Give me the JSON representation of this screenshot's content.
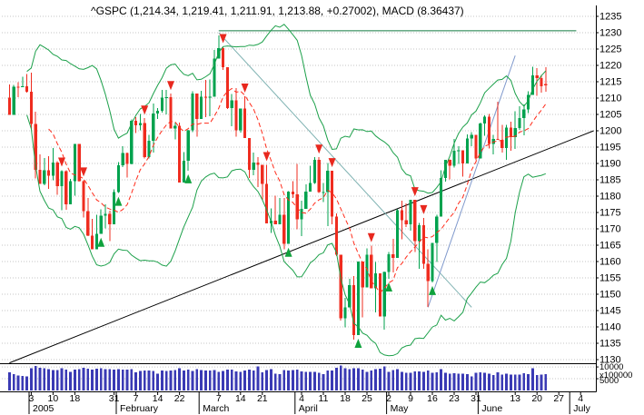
{
  "title": "^GSPC (1,214.34, 1,219.41, 1,211.91, 1,213.88, +0.27002), MACD (8.36437)",
  "colors": {
    "up": "#00a24e",
    "down": "#ef2c1f",
    "volume": "#3a3ab4",
    "grid": "#c4c4c4",
    "band": "#1ca04a",
    "sma": "#ff2b1a",
    "sell_arrow": "#e8281e",
    "buy_arrow": "#0fa23c",
    "axis": "#000000"
  },
  "price_axis": {
    "min": 1130,
    "max": 1235,
    "step": 5
  },
  "volume_axis": {
    "gridlines": [
      10000,
      5000
    ],
    "labels": [
      "10000",
      "5000"
    ],
    "multiplier_label": "x100000",
    "max": 10800
  },
  "x_axis": {
    "ticks": [
      {
        "label": "3",
        "index": 5
      },
      {
        "label": "10",
        "index": 10
      },
      {
        "label": "18",
        "index": 15
      },
      {
        "label": "31",
        "index": 24
      },
      {
        "label": "7",
        "index": 29
      },
      {
        "label": "14",
        "index": 34
      },
      {
        "label": "22",
        "index": 39
      },
      {
        "label": "7",
        "index": 48
      },
      {
        "label": "14",
        "index": 53
      },
      {
        "label": "21",
        "index": 58
      },
      {
        "label": "4",
        "index": 67
      },
      {
        "label": "11",
        "index": 72
      },
      {
        "label": "18",
        "index": 77
      },
      {
        "label": "25",
        "index": 82
      },
      {
        "label": "2",
        "index": 87
      },
      {
        "label": "9",
        "index": 92
      },
      {
        "label": "16",
        "index": 97
      },
      {
        "label": "23",
        "index": 102
      },
      {
        "label": "31",
        "index": 107
      },
      {
        "label": "13",
        "index": 116
      },
      {
        "label": "20",
        "index": 121
      },
      {
        "label": "27",
        "index": 126
      },
      {
        "label": "4",
        "index": 131
      }
    ],
    "months": [
      {
        "label": "2005",
        "index": 5
      },
      {
        "label": "February",
        "index": 25
      },
      {
        "label": "March",
        "index": 44
      },
      {
        "label": "April",
        "index": 66
      },
      {
        "label": "May",
        "index": 87
      },
      {
        "label": "June",
        "index": 108
      },
      {
        "label": "July",
        "index": 129
      }
    ]
  },
  "chart_data": {
    "type": "candlestick",
    "symbol": "^GSPC",
    "title": "^GSPC (1,214.34, 1,219.41, 1,211.91, 1,213.88, +0.27002), MACD (8.36437)",
    "ylim": [
      1130,
      1235
    ],
    "volume_ylim": [
      0,
      10800
    ],
    "grid": true,
    "dates": [
      "2004-12-27",
      "2004-12-28",
      "2004-12-29",
      "2004-12-30",
      "2004-12-31",
      "2005-01-03",
      "2005-01-04",
      "2005-01-05",
      "2005-01-06",
      "2005-01-07",
      "2005-01-10",
      "2005-01-11",
      "2005-01-12",
      "2005-01-13",
      "2005-01-14",
      "2005-01-18",
      "2005-01-19",
      "2005-01-20",
      "2005-01-21",
      "2005-01-24",
      "2005-01-25",
      "2005-01-26",
      "2005-01-27",
      "2005-01-28",
      "2005-01-31",
      "2005-02-01",
      "2005-02-02",
      "2005-02-03",
      "2005-02-04",
      "2005-02-07",
      "2005-02-08",
      "2005-02-09",
      "2005-02-10",
      "2005-02-11",
      "2005-02-14",
      "2005-02-15",
      "2005-02-16",
      "2005-02-17",
      "2005-02-18",
      "2005-02-22",
      "2005-02-23",
      "2005-02-24",
      "2005-02-25",
      "2005-02-28",
      "2005-03-01",
      "2005-03-02",
      "2005-03-03",
      "2005-03-04",
      "2005-03-07",
      "2005-03-08",
      "2005-03-09",
      "2005-03-10",
      "2005-03-11",
      "2005-03-14",
      "2005-03-15",
      "2005-03-16",
      "2005-03-17",
      "2005-03-18",
      "2005-03-21",
      "2005-03-22",
      "2005-03-23",
      "2005-03-24",
      "2005-03-28",
      "2005-03-29",
      "2005-03-30",
      "2005-03-31",
      "2005-04-01",
      "2005-04-04",
      "2005-04-05",
      "2005-04-06",
      "2005-04-07",
      "2005-04-08",
      "2005-04-11",
      "2005-04-12",
      "2005-04-13",
      "2005-04-14",
      "2005-04-15",
      "2005-04-18",
      "2005-04-19",
      "2005-04-20",
      "2005-04-21",
      "2005-04-22",
      "2005-04-25",
      "2005-04-26",
      "2005-04-27",
      "2005-04-28",
      "2005-04-29",
      "2005-05-02",
      "2005-05-03",
      "2005-05-04",
      "2005-05-05",
      "2005-05-06",
      "2005-05-09",
      "2005-05-10",
      "2005-05-11",
      "2005-05-12",
      "2005-05-13",
      "2005-05-16",
      "2005-05-17",
      "2005-05-18",
      "2005-05-19",
      "2005-05-20",
      "2005-05-23",
      "2005-05-24",
      "2005-05-25",
      "2005-05-26",
      "2005-05-27",
      "2005-05-31",
      "2005-06-01",
      "2005-06-02",
      "2005-06-03",
      "2005-06-06",
      "2005-06-07",
      "2005-06-08",
      "2005-06-09",
      "2005-06-10",
      "2005-06-13",
      "2005-06-14",
      "2005-06-15",
      "2005-06-16",
      "2005-06-17",
      "2005-06-20",
      "2005-06-21",
      "2005-06-22"
    ],
    "open": [
      1210.13,
      1204.92,
      1213.54,
      1213.45,
      1213.55,
      1211.92,
      1202.08,
      1188.05,
      1183.74,
      1187.89,
      1186.19,
      1190.25,
      1182.99,
      1187.7,
      1177.45,
      1184.52,
      1195.98,
      1184.63,
      1175.41,
      1167.87,
      1163.75,
      1168.41,
      1174.07,
      1174.55,
      1171.36,
      1181.27,
      1189.41,
      1193.19,
      1189.89,
      1203.03,
      1201.72,
      1202.3,
      1191.99,
      1197.01,
      1205.3,
      1206.14,
      1210.12,
      1210.34,
      1200.75,
      1201.59,
      1184.16,
      1190.8,
      1200.2,
      1211.37,
      1203.6,
      1210.41,
      1210.08,
      1210.47,
      1222.12,
      1225.31,
      1219.43,
      1207.01,
      1209.25,
      1200.08,
      1206.83,
      1197.75,
      1188.07,
      1190.21,
      1189.65,
      1183.78,
      1171.71,
      1172.53,
      1171.42,
      1174.28,
      1165.36,
      1181.41,
      1180.59,
      1172.92,
      1176.12,
      1181.39,
      1184.07,
      1191.14,
      1181.2,
      1181.21,
      1187.76,
      1173.79,
      1162.05,
      1142.62,
      1145.98,
      1152.78,
      1137.5,
      1159.95,
      1152.12,
      1162.1,
      1151.74,
      1156.38,
      1143.22,
      1156.85,
      1162.16,
      1161.17,
      1175.65,
      1172.63,
      1171.35,
      1178.84,
      1166.22,
      1171.11,
      1159.36,
      1154.05,
      1165.69,
      1173.8,
      1185.56,
      1191.08,
      1189.28,
      1193.86,
      1194.07,
      1190.01,
      1197.62,
      1198.78,
      1191.5,
      1202.22,
      1204.29,
      1196.02,
      1197.51,
      1197.26,
      1194.67,
      1200.93,
      1198.11,
      1200.82,
      1203.91,
      1206.58,
      1210.96,
      1216.96,
      1216.1,
      1214.34
    ],
    "high": [
      1214.13,
      1213.97,
      1214.86,
      1216.47,
      1217.33,
      1217.8,
      1205.84,
      1192.73,
      1191.63,
      1192.2,
      1194.78,
      1190.67,
      1187.92,
      1187.92,
      1185.21,
      1195.98,
      1195.98,
      1184.88,
      1179.45,
      1173.03,
      1174.3,
      1175.96,
      1177.5,
      1175.61,
      1182.07,
      1190.39,
      1195.25,
      1193.34,
      1203.47,
      1204.15,
      1205.11,
      1203.83,
      1198.75,
      1208.38,
      1206.88,
      1212.44,
      1212.44,
      1211.33,
      1202.48,
      1202.48,
      1193.54,
      1200.26,
      1212.15,
      1211.37,
      1212.25,
      1215.61,
      1215.72,
      1224.76,
      1229.11,
      1225.69,
      1219.43,
      1211.23,
      1213.04,
      1206.83,
      1210.54,
      1197.75,
      1193.28,
      1191.98,
      1189.65,
      1189.59,
      1176.26,
      1180.11,
      1179.39,
      1179.39,
      1181.55,
      1184.53,
      1189.8,
      1178.61,
      1183.56,
      1189.35,
      1191.88,
      1191.88,
      1184.07,
      1190.17,
      1187.76,
      1174.67,
      1162.05,
      1148.92,
      1154.67,
      1155.5,
      1159.95,
      1159.95,
      1164.05,
      1164.8,
      1159.87,
      1156.38,
      1156.97,
      1162.87,
      1166.89,
      1176.01,
      1178.62,
      1177.75,
      1178.87,
      1178.84,
      1171.77,
      1173.37,
      1163.75,
      1165.75,
      1174.35,
      1187.9,
      1191.12,
      1191.22,
      1197.44,
      1195.29,
      1194.07,
      1198.95,
      1199.56,
      1198.78,
      1202.56,
      1204.68,
      1205.09,
      1198.78,
      1208.85,
      1201.86,
      1201.86,
      1202.79,
      1206.03,
      1207.53,
      1208.08,
      1212.1,
      1219.55,
      1219.1,
      1217.13,
      1219.41
    ],
    "low": [
      1204.92,
      1204.92,
      1210.3,
      1213.41,
      1211.65,
      1200.32,
      1185.39,
      1183.72,
      1183.27,
      1182.16,
      1184.8,
      1180.43,
      1175.64,
      1175.81,
      1177.45,
      1180.12,
      1184.41,
      1173.43,
      1167.82,
      1163.75,
      1163.75,
      1168.41,
      1170.15,
      1166.25,
      1171.36,
      1180.95,
      1188.92,
      1185.64,
      1189.67,
      1199.27,
      1200.16,
      1191.54,
      1191.54,
      1193.28,
      1203.59,
      1205.52,
      1205.06,
      1200.74,
      1197.35,
      1184.16,
      1184.16,
      1187.8,
      1199.6,
      1198.13,
      1203.6,
      1204.22,
      1204.44,
      1210.47,
      1222.12,
      1218.57,
      1206.66,
      1201.41,
      1198.15,
      1199.51,
      1197.75,
      1185.61,
      1186.34,
      1182.78,
      1178.82,
      1171.63,
      1168.7,
      1171.42,
      1171.42,
      1163.69,
      1165.36,
      1179.49,
      1169.91,
      1167.72,
      1176.12,
      1181.39,
      1183.81,
      1181.03,
      1178.22,
      1170.85,
      1171.4,
      1161.7,
      1141.92,
      1139.8,
      1145.98,
      1136.15,
      1137.5,
      1142.95,
      1152.12,
      1151.74,
      1144.42,
      1143.22,
      1139.19,
      1154.71,
      1156.71,
      1161.17,
      1166.77,
      1170.5,
      1169.38,
      1162.98,
      1157.71,
      1157.76,
      1146.18,
      1153.64,
      1159.82,
      1173.8,
      1184.49,
      1185.19,
      1188.76,
      1189.87,
      1185.96,
      1190.01,
      1195.28,
      1191.03,
      1191.5,
      1198.42,
      1194.55,
      1192.75,
      1197.26,
      1193.33,
      1191.08,
      1193.88,
      1194.51,
      1200.23,
      1198.66,
      1205.47,
      1210.96,
      1210.65,
      1211.69,
      1211.91
    ],
    "close": [
      1204.92,
      1213.54,
      1213.45,
      1213.55,
      1211.92,
      1202.08,
      1188.05,
      1183.74,
      1187.89,
      1186.19,
      1190.25,
      1182.99,
      1187.7,
      1177.45,
      1184.52,
      1195.98,
      1184.63,
      1175.41,
      1167.87,
      1163.75,
      1168.41,
      1174.07,
      1174.55,
      1171.36,
      1181.27,
      1189.41,
      1193.19,
      1189.89,
      1203.03,
      1201.72,
      1202.3,
      1191.99,
      1197.01,
      1205.3,
      1206.14,
      1210.12,
      1210.34,
      1200.75,
      1201.59,
      1184.16,
      1190.8,
      1200.2,
      1211.37,
      1203.6,
      1210.41,
      1210.08,
      1210.47,
      1222.12,
      1225.31,
      1219.43,
      1207.01,
      1209.25,
      1200.08,
      1206.83,
      1197.75,
      1188.07,
      1190.21,
      1189.65,
      1183.78,
      1171.71,
      1172.53,
      1171.42,
      1174.28,
      1165.36,
      1181.41,
      1180.59,
      1172.92,
      1176.12,
      1181.39,
      1184.07,
      1191.14,
      1181.2,
      1181.21,
      1187.76,
      1173.79,
      1162.05,
      1142.62,
      1145.98,
      1152.78,
      1137.5,
      1159.95,
      1152.12,
      1162.1,
      1151.74,
      1156.38,
      1143.22,
      1156.85,
      1162.16,
      1161.17,
      1175.65,
      1172.63,
      1171.35,
      1178.84,
      1166.22,
      1171.11,
      1159.36,
      1154.05,
      1165.69,
      1173.8,
      1185.56,
      1191.08,
      1189.28,
      1193.86,
      1194.07,
      1190.01,
      1197.62,
      1198.78,
      1191.5,
      1202.22,
      1204.29,
      1196.02,
      1197.51,
      1197.26,
      1194.67,
      1200.93,
      1198.11,
      1200.82,
      1203.91,
      1206.58,
      1210.96,
      1216.96,
      1216.1,
      1213.61,
      1213.88
    ],
    "volume_x100000": [
      7800,
      7000,
      6400,
      6200,
      6000,
      9500,
      10400,
      9700,
      9500,
      9000,
      8600,
      8700,
      9400,
      8800,
      8000,
      8900,
      9000,
      9600,
      9300,
      8900,
      9200,
      9400,
      9000,
      9100,
      8800,
      9100,
      8900,
      8900,
      9000,
      7700,
      8300,
      8500,
      8400,
      8300,
      7200,
      8500,
      8300,
      8500,
      8600,
      9400,
      8500,
      8800,
      8300,
      9100,
      8600,
      8400,
      8500,
      8600,
      8000,
      8300,
      8800,
      8800,
      8100,
      7900,
      8400,
      8800,
      8500,
      10200,
      7800,
      8600,
      9000,
      7200,
      7000,
      8600,
      8400,
      8700,
      8800,
      8100,
      7900,
      7900,
      8000,
      7500,
      7000,
      8400,
      8500,
      9700,
      10600,
      9500,
      9000,
      9500,
      9500,
      8900,
      8000,
      8500,
      9000,
      9300,
      10200,
      8000,
      8600,
      9000,
      8000,
      7600,
      7500,
      8100,
      8100,
      8000,
      8500,
      7500,
      7700,
      9000,
      7500,
      7200,
      7300,
      7100,
      7200,
      7000,
      6000,
      7600,
      7800,
      7600,
      7200,
      6600,
      7800,
      6800,
      7200,
      6800,
      6700,
      6800,
      7300,
      7000,
      9500,
      6600,
      6800,
      6900
    ],
    "indicators": {
      "sma_dashed_red_period": 10,
      "bollinger_green_period": 20,
      "bollinger_green_k": 2
    },
    "trendlines": [
      {
        "name": "long-uptrend",
        "color": "#000000",
        "from_index": 0,
        "from_price": 1129,
        "to_index": 134,
        "to_price": 1200
      },
      {
        "name": "march-downtrend",
        "color": "#7fb2b2",
        "from_index": 48,
        "from_price": 1230,
        "to_index": 106,
        "to_price": 1146
      },
      {
        "name": "may-uptrend",
        "color": "#8099cc",
        "from_index": 96,
        "from_price": 1146,
        "to_index": 116,
        "to_price": 1223
      },
      {
        "name": "resistance-1230",
        "color": "#107a40",
        "from_index": 48,
        "from_price": 1230.6,
        "to_index": 130,
        "to_price": 1230.6
      }
    ],
    "signals": {
      "sell_indices": [
        12,
        17,
        31,
        37,
        49,
        54,
        59,
        71,
        74,
        83,
        93,
        95
      ],
      "buy_indices": [
        21,
        25,
        41,
        64,
        80,
        87,
        97
      ]
    }
  }
}
